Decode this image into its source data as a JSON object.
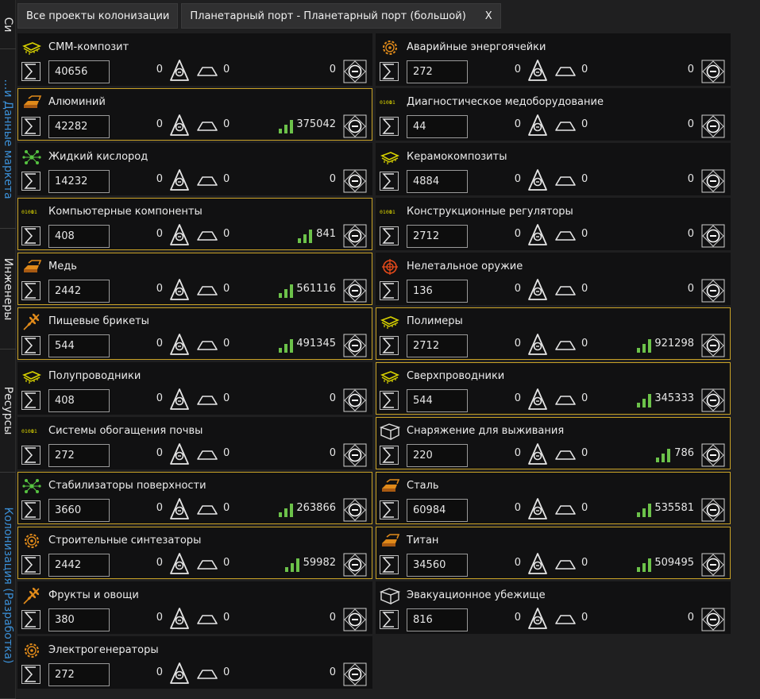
{
  "header": {
    "btn_all": "Все проекты колонизации",
    "btn_port": "Планетарный порт - Планетарный порт (большой)",
    "close": "X"
  },
  "side_tabs": [
    {
      "label": "Си",
      "color": "#e6e6e6"
    },
    {
      "label": "…и Данные маркета",
      "color": "#3b8fd6"
    },
    {
      "label": "Инженеры",
      "color": "#e6e6e6"
    },
    {
      "label": "Ресурсы",
      "color": "#e6e6e6"
    },
    {
      "label": "Колонизация (Разработка)",
      "color": "#3b8fd6"
    }
  ],
  "colors": {
    "highlight": "#c9a227",
    "bars": "#6cc24a",
    "icon_yellow": "#d8d200",
    "icon_orange": "#e08a1a",
    "icon_green": "#56c341",
    "icon_red": "#e84a1a",
    "icon_white": "#dddddd"
  },
  "items": [
    {
      "name": "СММ-композит",
      "icon": "chip-icon",
      "color": "#d8d200",
      "qty": "40656",
      "n1": "0",
      "n2": "0",
      "stock": "0",
      "bars": false,
      "hl": false
    },
    {
      "name": "Аварийные энергоячейки",
      "icon": "gear-icon",
      "color": "#e08a1a",
      "qty": "272",
      "n1": "0",
      "n2": "0",
      "stock": "0",
      "bars": false,
      "hl": false
    },
    {
      "name": "Алюминий",
      "icon": "ingot-icon",
      "color": "#e08a1a",
      "qty": "42282",
      "n1": "0",
      "n2": "0",
      "stock": "375042",
      "bars": true,
      "hl": true
    },
    {
      "name": "Диагностическое медоборудование",
      "icon": "binary-icon",
      "color": "#d8d200",
      "qty": "44",
      "n1": "0",
      "n2": "0",
      "stock": "0",
      "bars": false,
      "hl": false
    },
    {
      "name": "Жидкий кислород",
      "icon": "molecule-icon",
      "color": "#56c341",
      "qty": "14232",
      "n1": "0",
      "n2": "0",
      "stock": "0",
      "bars": false,
      "hl": false
    },
    {
      "name": "Керамокомпозиты",
      "icon": "chip-icon",
      "color": "#d8d200",
      "qty": "4884",
      "n1": "0",
      "n2": "0",
      "stock": "0",
      "bars": false,
      "hl": false
    },
    {
      "name": "Компьютерные компоненты",
      "icon": "binary-icon",
      "color": "#d8d200",
      "qty": "408",
      "n1": "0",
      "n2": "0",
      "stock": "841",
      "bars": true,
      "hl": true
    },
    {
      "name": "Конструкционные регуляторы",
      "icon": "binary-icon",
      "color": "#d8d200",
      "qty": "2712",
      "n1": "0",
      "n2": "0",
      "stock": "0",
      "bars": false,
      "hl": false
    },
    {
      "name": "Медь",
      "icon": "ingot-icon",
      "color": "#e08a1a",
      "qty": "2442",
      "n1": "0",
      "n2": "0",
      "stock": "561116",
      "bars": true,
      "hl": true
    },
    {
      "name": "Нелетальное оружие",
      "icon": "crosshair-icon",
      "color": "#e84a1a",
      "qty": "136",
      "n1": "0",
      "n2": "0",
      "stock": "0",
      "bars": false,
      "hl": false
    },
    {
      "name": "Пищевые брикеты",
      "icon": "wheat-icon",
      "color": "#e08a1a",
      "qty": "544",
      "n1": "0",
      "n2": "0",
      "stock": "491345",
      "bars": true,
      "hl": true
    },
    {
      "name": "Полимеры",
      "icon": "chip-icon",
      "color": "#d8d200",
      "qty": "2712",
      "n1": "0",
      "n2": "0",
      "stock": "921298",
      "bars": true,
      "hl": true
    },
    {
      "name": "Полупроводники",
      "icon": "chip-icon",
      "color": "#d8d200",
      "qty": "408",
      "n1": "0",
      "n2": "0",
      "stock": "0",
      "bars": false,
      "hl": false
    },
    {
      "name": "Сверхпроводники",
      "icon": "chip-icon",
      "color": "#d8d200",
      "qty": "544",
      "n1": "0",
      "n2": "0",
      "stock": "345333",
      "bars": true,
      "hl": true
    },
    {
      "name": "Системы обогащения почвы",
      "icon": "binary-icon",
      "color": "#d8d200",
      "qty": "272",
      "n1": "0",
      "n2": "0",
      "stock": "0",
      "bars": false,
      "hl": false
    },
    {
      "name": "Снаряжение для выживания",
      "icon": "crate-icon",
      "color": "#dddddd",
      "qty": "220",
      "n1": "0",
      "n2": "0",
      "stock": "786",
      "bars": true,
      "hl": true
    },
    {
      "name": "Стабилизаторы поверхности",
      "icon": "molecule-icon",
      "color": "#56c341",
      "qty": "3660",
      "n1": "0",
      "n2": "0",
      "stock": "263866",
      "bars": true,
      "hl": true
    },
    {
      "name": "Сталь",
      "icon": "ingot-icon",
      "color": "#e08a1a",
      "qty": "60984",
      "n1": "0",
      "n2": "0",
      "stock": "535581",
      "bars": true,
      "hl": true
    },
    {
      "name": "Строительные синтезаторы",
      "icon": "gear-icon",
      "color": "#e08a1a",
      "qty": "2442",
      "n1": "0",
      "n2": "0",
      "stock": "59982",
      "bars": true,
      "hl": true
    },
    {
      "name": "Титан",
      "icon": "ingot-icon",
      "color": "#e08a1a",
      "qty": "34560",
      "n1": "0",
      "n2": "0",
      "stock": "509495",
      "bars": true,
      "hl": true
    },
    {
      "name": "Фрукты и овощи",
      "icon": "wheat-icon",
      "color": "#e08a1a",
      "qty": "380",
      "n1": "0",
      "n2": "0",
      "stock": "0",
      "bars": false,
      "hl": false
    },
    {
      "name": "Эвакуационное убежище",
      "icon": "crate-icon",
      "color": "#dddddd",
      "qty": "816",
      "n1": "0",
      "n2": "0",
      "stock": "0",
      "bars": false,
      "hl": false
    },
    {
      "name": "Электрогенераторы",
      "icon": "gear-icon",
      "color": "#e08a1a",
      "qty": "272",
      "n1": "0",
      "n2": "0",
      "stock": "0",
      "bars": false,
      "hl": false
    }
  ]
}
